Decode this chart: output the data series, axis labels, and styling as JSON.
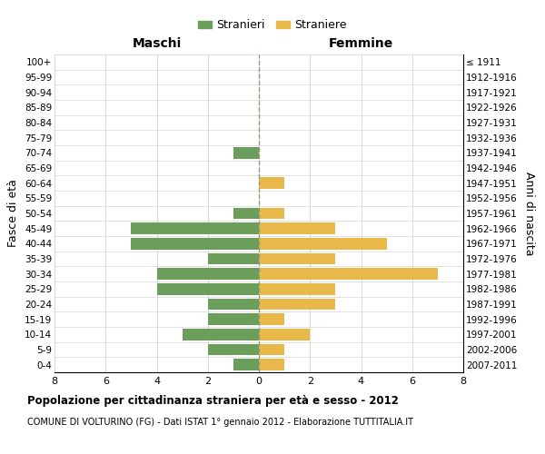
{
  "age_groups": [
    "0-4",
    "5-9",
    "10-14",
    "15-19",
    "20-24",
    "25-29",
    "30-34",
    "35-39",
    "40-44",
    "45-49",
    "50-54",
    "55-59",
    "60-64",
    "65-69",
    "70-74",
    "75-79",
    "80-84",
    "85-89",
    "90-94",
    "95-99",
    "100+"
  ],
  "birth_years": [
    "2007-2011",
    "2002-2006",
    "1997-2001",
    "1992-1996",
    "1987-1991",
    "1982-1986",
    "1977-1981",
    "1972-1976",
    "1967-1971",
    "1962-1966",
    "1957-1961",
    "1952-1956",
    "1947-1951",
    "1942-1946",
    "1937-1941",
    "1932-1936",
    "1927-1931",
    "1922-1926",
    "1917-1921",
    "1912-1916",
    "≤ 1911"
  ],
  "maschi": [
    1,
    2,
    3,
    2,
    2,
    4,
    4,
    2,
    5,
    5,
    1,
    0,
    0,
    0,
    1,
    0,
    0,
    0,
    0,
    0,
    0
  ],
  "femmine": [
    1,
    1,
    2,
    1,
    3,
    3,
    7,
    3,
    5,
    3,
    1,
    0,
    1,
    0,
    0,
    0,
    0,
    0,
    0,
    0,
    0
  ],
  "maschi_color": "#6a9e5a",
  "femmine_color": "#e8b84b",
  "bg_color": "#ffffff",
  "grid_color": "#cccccc",
  "center_line_color": "#999977",
  "title": "Popolazione per cittadinanza straniera per età e sesso - 2012",
  "subtitle": "COMUNE DI VOLTURINO (FG) - Dati ISTAT 1° gennaio 2012 - Elaborazione TUTTITALIA.IT",
  "xlabel_left": "Maschi",
  "xlabel_right": "Femmine",
  "ylabel_left": "Fasce di età",
  "ylabel_right": "Anni di nascita",
  "legend_maschi": "Stranieri",
  "legend_femmine": "Straniere",
  "xlim": 8
}
